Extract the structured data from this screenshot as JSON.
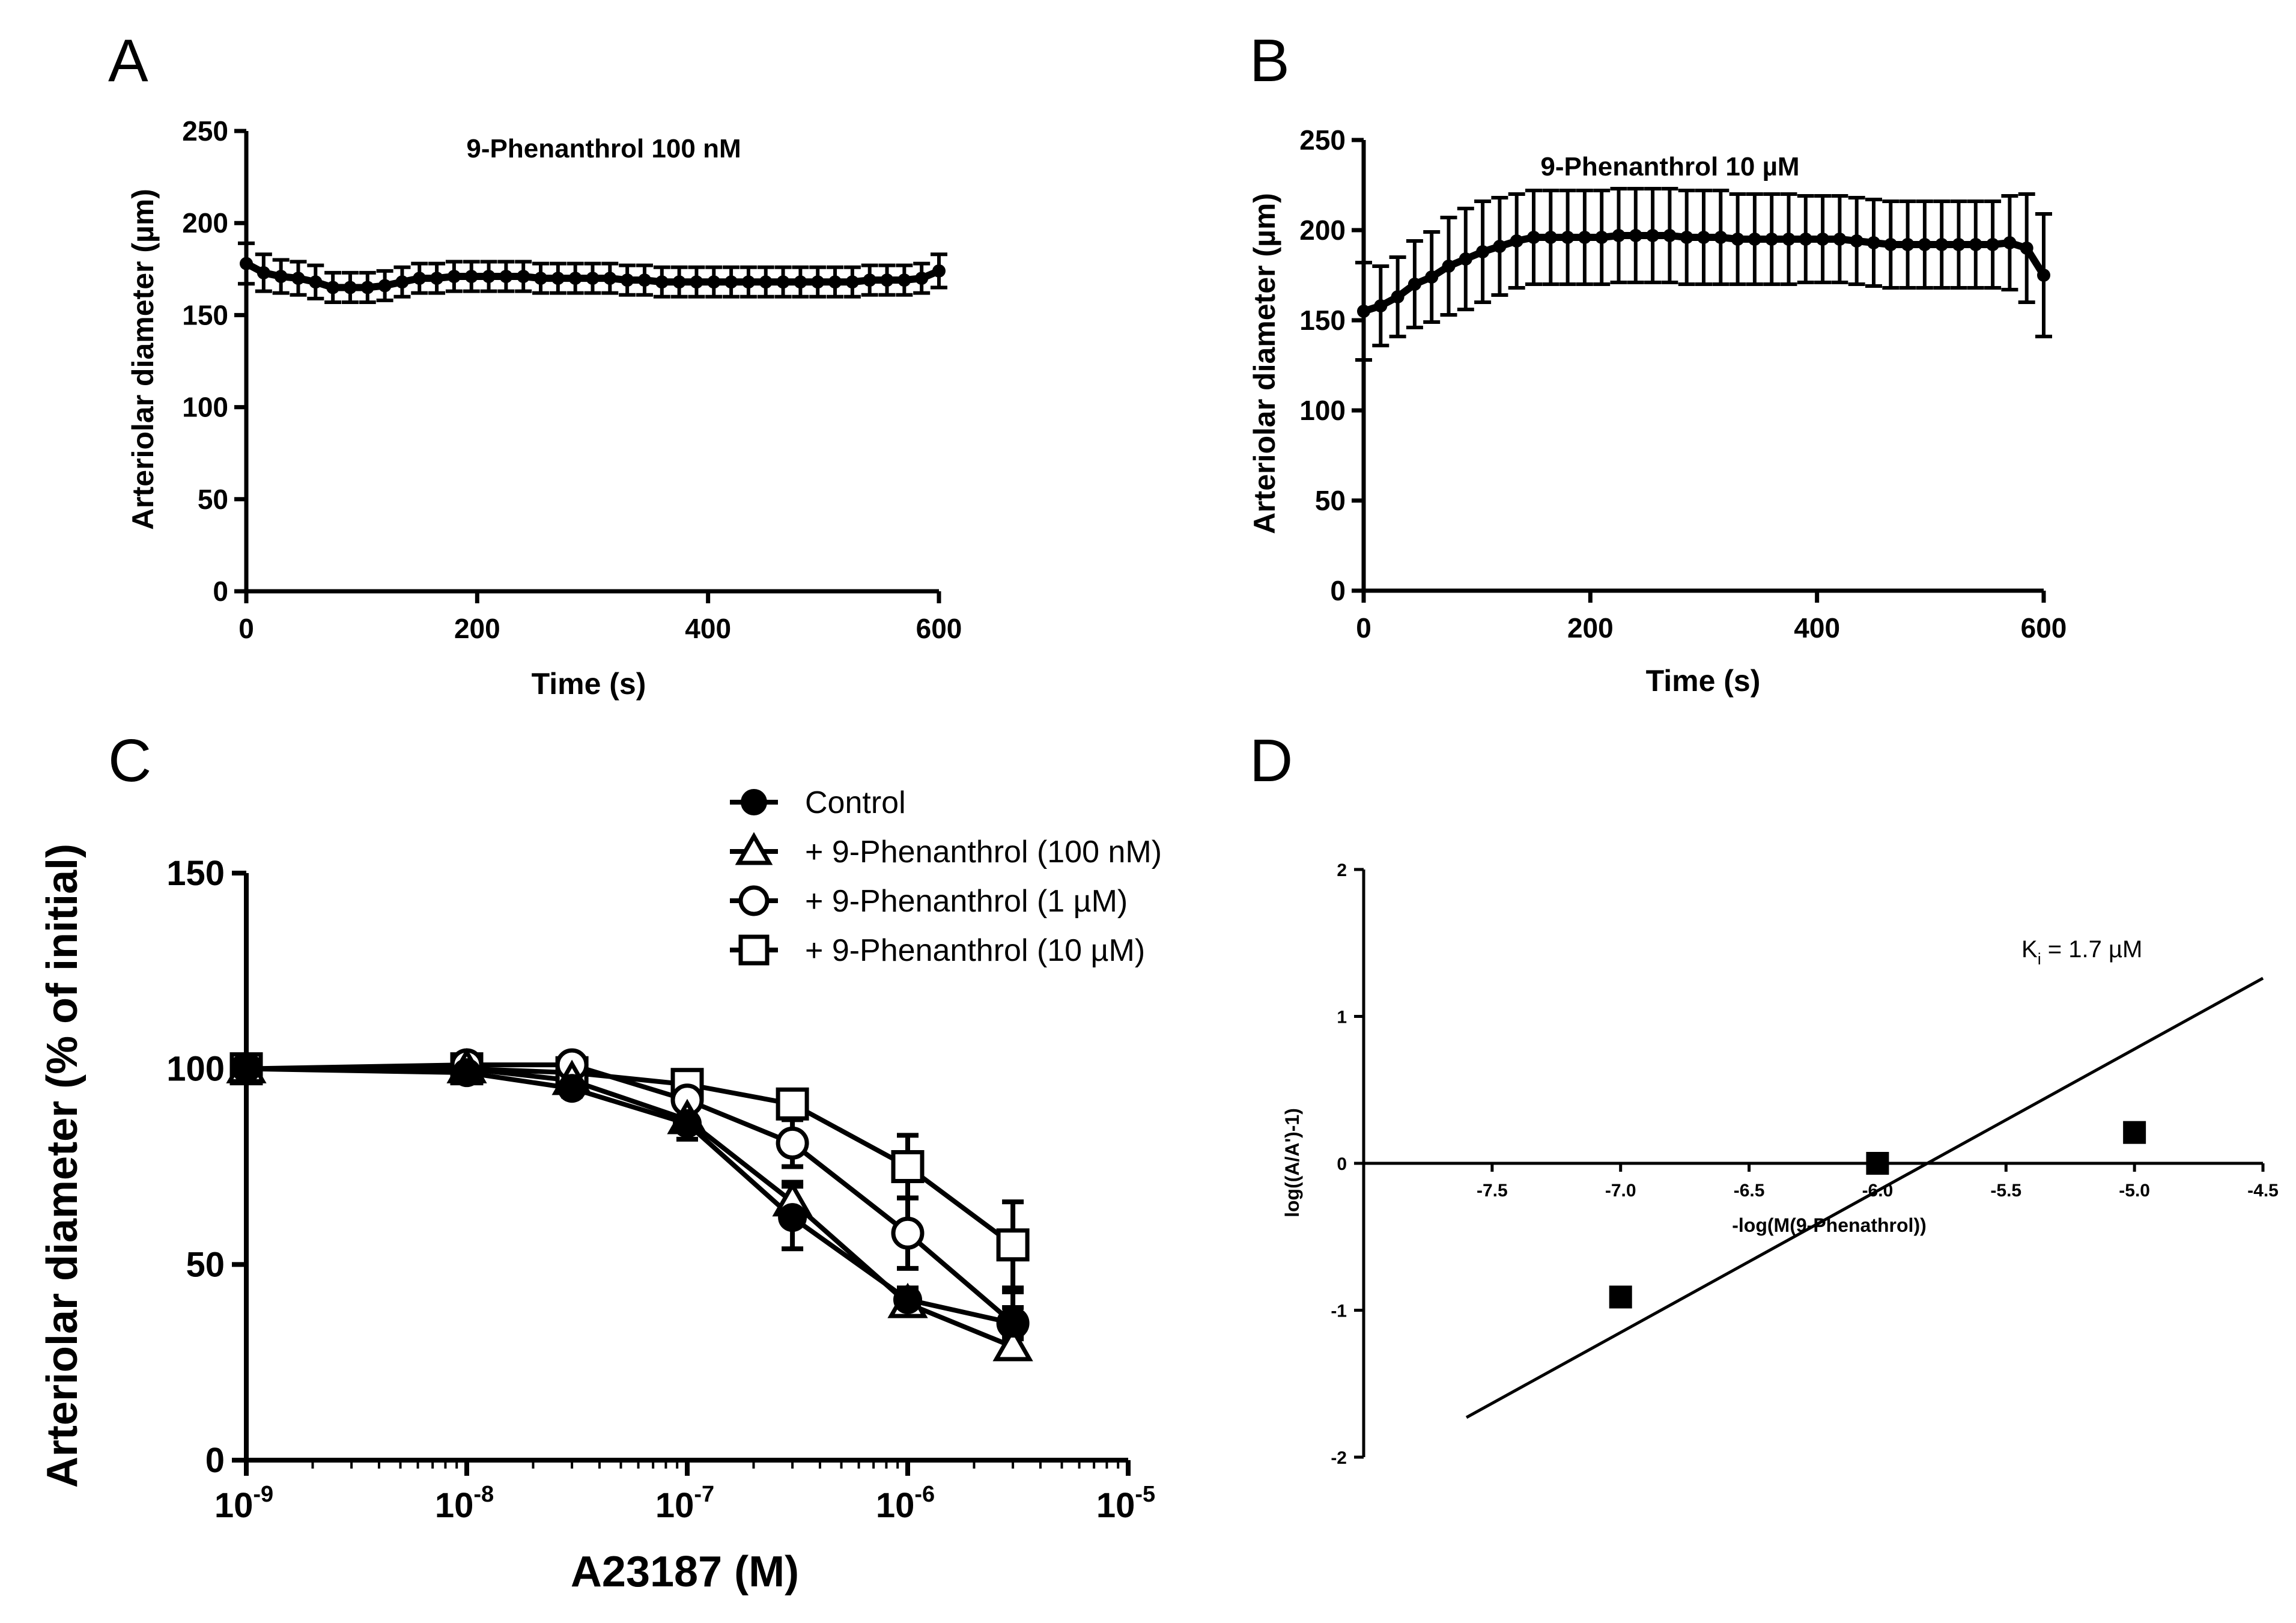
{
  "panels": {
    "A": {
      "letter": "A"
    },
    "B": {
      "letter": "B"
    },
    "C": {
      "letter": "C"
    },
    "D": {
      "letter": "D"
    }
  },
  "chart_data": [
    {
      "id": "A",
      "type": "line",
      "title": "9-Phenanthrol 100 nM",
      "xlabel": "Time (s)",
      "ylabel": "Arteriolar diameter (µm)",
      "xlim": [
        0,
        600
      ],
      "ylim": [
        0,
        250
      ],
      "xticks": [
        0,
        200,
        400,
        600
      ],
      "yticks": [
        0,
        50,
        100,
        150,
        200,
        250
      ],
      "grid": false,
      "series": [
        {
          "x": [
            0,
            15,
            30,
            45,
            60,
            75,
            90,
            105,
            120,
            135,
            150,
            165,
            180,
            195,
            210,
            225,
            240,
            255,
            270,
            285,
            300,
            315,
            330,
            345,
            360,
            375,
            390,
            405,
            420,
            435,
            450,
            465,
            480,
            495,
            510,
            525,
            540,
            555,
            570,
            585,
            600
          ],
          "y": [
            178,
            173,
            171,
            170,
            168,
            165,
            165,
            165,
            166,
            168,
            170,
            170,
            171,
            171,
            171,
            171,
            171,
            170,
            170,
            170,
            170,
            170,
            169,
            169,
            168,
            168,
            168,
            168,
            168,
            168,
            168,
            168,
            168,
            168,
            168,
            168,
            169,
            169,
            169,
            170,
            174
          ],
          "err": [
            11,
            10,
            9,
            9,
            9,
            8,
            8,
            8,
            8,
            8,
            8,
            8,
            8,
            8,
            8,
            8,
            8,
            8,
            8,
            8,
            8,
            8,
            8,
            8,
            8,
            8,
            8,
            8,
            8,
            8,
            8,
            8,
            8,
            8,
            8,
            8,
            8,
            8,
            8,
            8,
            9
          ]
        }
      ]
    },
    {
      "id": "B",
      "type": "line",
      "title": "9-Phenanthrol 10 µM",
      "xlabel": "Time (s)",
      "ylabel": "Arteriolar diameter (µm)",
      "xlim": [
        0,
        600
      ],
      "ylim": [
        0,
        250
      ],
      "xticks": [
        0,
        200,
        400,
        600
      ],
      "yticks": [
        0,
        50,
        100,
        150,
        200,
        250
      ],
      "grid": false,
      "series": [
        {
          "x": [
            0,
            15,
            30,
            45,
            60,
            75,
            90,
            105,
            120,
            135,
            150,
            165,
            180,
            195,
            210,
            225,
            240,
            255,
            270,
            285,
            300,
            315,
            330,
            345,
            360,
            375,
            390,
            405,
            420,
            435,
            450,
            465,
            480,
            495,
            510,
            525,
            540,
            555,
            570,
            585,
            600
          ],
          "y": [
            155,
            158,
            163,
            170,
            174,
            180,
            184,
            188,
            191,
            194,
            196,
            196,
            196,
            196,
            196,
            197,
            197,
            197,
            197,
            196,
            196,
            196,
            195,
            195,
            195,
            195,
            195,
            195,
            195,
            194,
            193,
            192,
            192,
            192,
            192,
            192,
            192,
            192,
            193,
            190,
            175
          ],
          "err": [
            27,
            22,
            22,
            24,
            25,
            27,
            28,
            28,
            27,
            26,
            26,
            26,
            26,
            26,
            26,
            26,
            26,
            26,
            26,
            26,
            26,
            26,
            25,
            25,
            25,
            25,
            24,
            24,
            24,
            24,
            24,
            24,
            24,
            24,
            24,
            24,
            24,
            24,
            26,
            30,
            34
          ]
        }
      ]
    },
    {
      "id": "C",
      "type": "line",
      "xlabel": "A23187 (M)",
      "ylabel": "Arteriolar diameter (% of initial)",
      "xscale": "log",
      "xlim": [
        1e-09,
        1e-05
      ],
      "ylim": [
        0,
        150
      ],
      "yticks": [
        0,
        50,
        100,
        150
      ],
      "xtick_labels": [
        {
          "base": "10",
          "exp": "-9"
        },
        {
          "base": "10",
          "exp": "-8"
        },
        {
          "base": "10",
          "exp": "-7"
        },
        {
          "base": "10",
          "exp": "-6"
        },
        {
          "base": "10",
          "exp": "-5"
        }
      ],
      "legend_position": "top-right",
      "x": [
        1e-09,
        1e-08,
        3e-08,
        1e-07,
        3e-07,
        1e-06,
        3e-06
      ],
      "series": [
        {
          "name": "Control",
          "marker": "filled-circle",
          "y": [
            100,
            99,
            95,
            86,
            62,
            41,
            35
          ],
          "err": [
            0,
            1,
            2,
            4,
            8,
            3,
            4
          ]
        },
        {
          "name": "+ 9-Phenanthrol (100 nM)",
          "marker": "open-triangle",
          "y": [
            100,
            100,
            97,
            87,
            66,
            40,
            29
          ],
          "err": [
            0,
            1,
            2,
            3,
            5,
            3,
            3
          ]
        },
        {
          "name": "+ 9-Phenanthrol (1 µM)",
          "marker": "open-circle",
          "y": [
            100,
            101,
            101,
            92,
            81,
            58,
            35
          ],
          "err": [
            0,
            1,
            1,
            4,
            6,
            9,
            8
          ]
        },
        {
          "name": "+ 9-Phenanthrol (10 µM)",
          "marker": "open-square",
          "y": [
            100,
            100,
            99,
            96,
            91,
            75,
            55
          ],
          "err": [
            0,
            1,
            1,
            2,
            3,
            8,
            11
          ]
        }
      ]
    },
    {
      "id": "D",
      "type": "scatter",
      "xlabel": "-log(M(9-Phenathrol))",
      "ylabel": "log((A/A')-1)",
      "annotation": {
        "main": "K",
        "sub": "i",
        "rest": " = 1.7 µM"
      },
      "xlim": [
        -8,
        -4.5
      ],
      "ylim": [
        -2,
        2
      ],
      "xticks": [
        "-7.5",
        "-7.0",
        "-6.5",
        "-6.0",
        "-5.5",
        "-5.0",
        "-4.5"
      ],
      "yticks": [
        "-2",
        "-1",
        "0",
        "1",
        "2"
      ],
      "points": {
        "x": [
          -7.0,
          -6.0,
          -5.0
        ],
        "y": [
          -0.91,
          0.0,
          0.21
        ]
      },
      "fit_line": {
        "x": [
          -7.6,
          -4.5
        ],
        "y": [
          -1.73,
          1.26
        ]
      }
    }
  ]
}
